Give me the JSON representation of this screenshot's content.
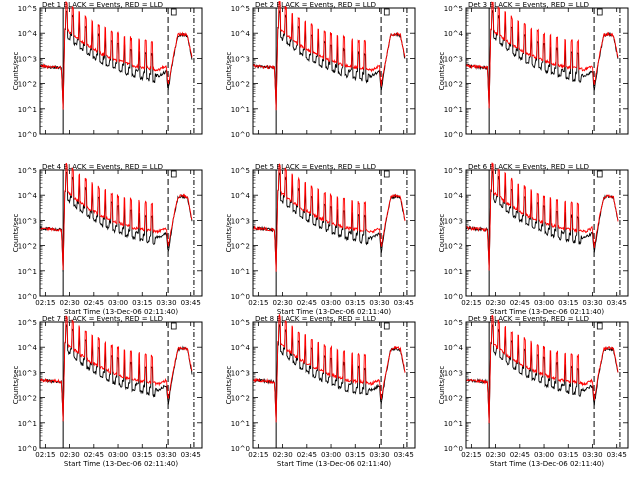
{
  "colors": {
    "events": "#000000",
    "lld": "#ff0000",
    "axis": "#000000",
    "background": "#ffffff"
  },
  "chart_data": {
    "type": "line",
    "layout": "grid 3x3",
    "y_scale": "log",
    "ylabel": "Counts/sec",
    "xlabel": "Start Time (13-Dec-06 02:11:40)",
    "xlim": [
      "02:11:40",
      "03:52:00"
    ],
    "ylim": [
      1,
      100000
    ],
    "x_ticks": [
      "02:15",
      "02:30",
      "02:45",
      "03:00",
      "03:15",
      "03:30",
      "03:45"
    ],
    "y_ticks": [
      "10^0",
      "10^1",
      "10^2",
      "10^3",
      "10^4",
      "10^5"
    ],
    "legend": {
      "events_label": "BLACK = Events,",
      "lld_label": "RED = LLD",
      "placement": "top"
    },
    "markers": {
      "solid_vertical_line": "02:26",
      "dashed_vertical_line": "03:31",
      "dash_dot_vertical_line": "03:47",
      "box_label_times": [
        "03:33",
        "03:36"
      ]
    },
    "series": [
      {
        "name": "Events",
        "x": [
          "02:12",
          "02:20",
          "02:25",
          "02:26",
          "02:27",
          "02:30",
          "02:40",
          "02:50",
          "03:00",
          "03:10",
          "03:20",
          "03:25",
          "03:30",
          "03:31",
          "03:34",
          "03:37",
          "03:40",
          "03:43",
          "03:46"
        ],
        "y": [
          500,
          450,
          420,
          10,
          15000,
          10000,
          3000,
          1200,
          600,
          350,
          250,
          200,
          300,
          50,
          900,
          8000,
          9000,
          8000,
          800
        ]
      },
      {
        "name": "LLD",
        "x": [
          "02:12",
          "02:20",
          "02:25",
          "02:26",
          "02:27",
          "02:30",
          "02:40",
          "02:50",
          "03:00",
          "03:10",
          "03:20",
          "03:25",
          "03:30",
          "03:31",
          "03:34",
          "03:37",
          "03:40",
          "03:43",
          "03:46"
        ],
        "y": [
          500,
          450,
          420,
          10,
          16000,
          11000,
          3500,
          1500,
          800,
          500,
          400,
          350,
          500,
          80,
          1000,
          8500,
          9500,
          8500,
          900
        ]
      }
    ],
    "panels": [
      {
        "title": "Det 1",
        "x_labels_shown": false,
        "label_shown": false
      },
      {
        "title": "Det 2",
        "x_labels_shown": false,
        "label_shown": false
      },
      {
        "title": "Det 3",
        "x_labels_shown": false,
        "label_shown": false
      },
      {
        "title": "Det 4",
        "x_labels_shown": true,
        "label_shown": true
      },
      {
        "title": "Det 5",
        "x_labels_shown": true,
        "label_shown": true
      },
      {
        "title": "Det 6",
        "x_labels_shown": true,
        "label_shown": true
      },
      {
        "title": "Det 7",
        "x_labels_shown": true,
        "label_shown": true
      },
      {
        "title": "Det 8",
        "x_labels_shown": true,
        "label_shown": true
      },
      {
        "title": "Det 9",
        "x_labels_shown": true,
        "label_shown": true
      }
    ]
  }
}
